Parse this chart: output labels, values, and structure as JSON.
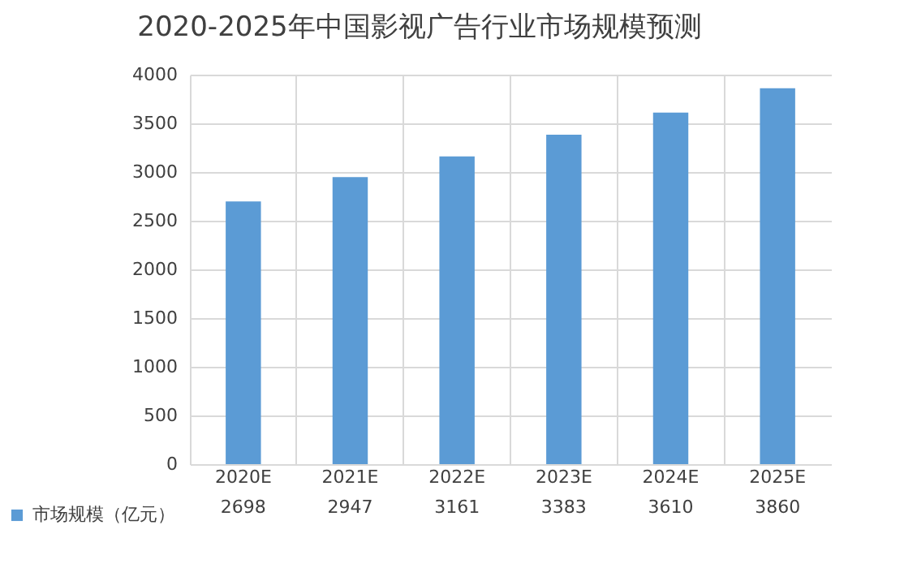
{
  "chart_data": {
    "type": "bar",
    "title": "2020-2025年中国影视广告行业市场规模预测",
    "categories": [
      "2020E",
      "2021E",
      "2022E",
      "2023E",
      "2024E",
      "2025E"
    ],
    "series": [
      {
        "name": "市场规模（亿元）",
        "color": "#5b9bd5",
        "values": [
          2698,
          2947,
          3161,
          3383,
          3610,
          3860
        ]
      }
    ],
    "ylim": [
      0,
      4000
    ],
    "yticks": [
      0,
      500,
      1000,
      1500,
      2000,
      2500,
      3000,
      3500,
      4000
    ],
    "grid": "y",
    "legend": "bottom left",
    "data_labels": true
  }
}
